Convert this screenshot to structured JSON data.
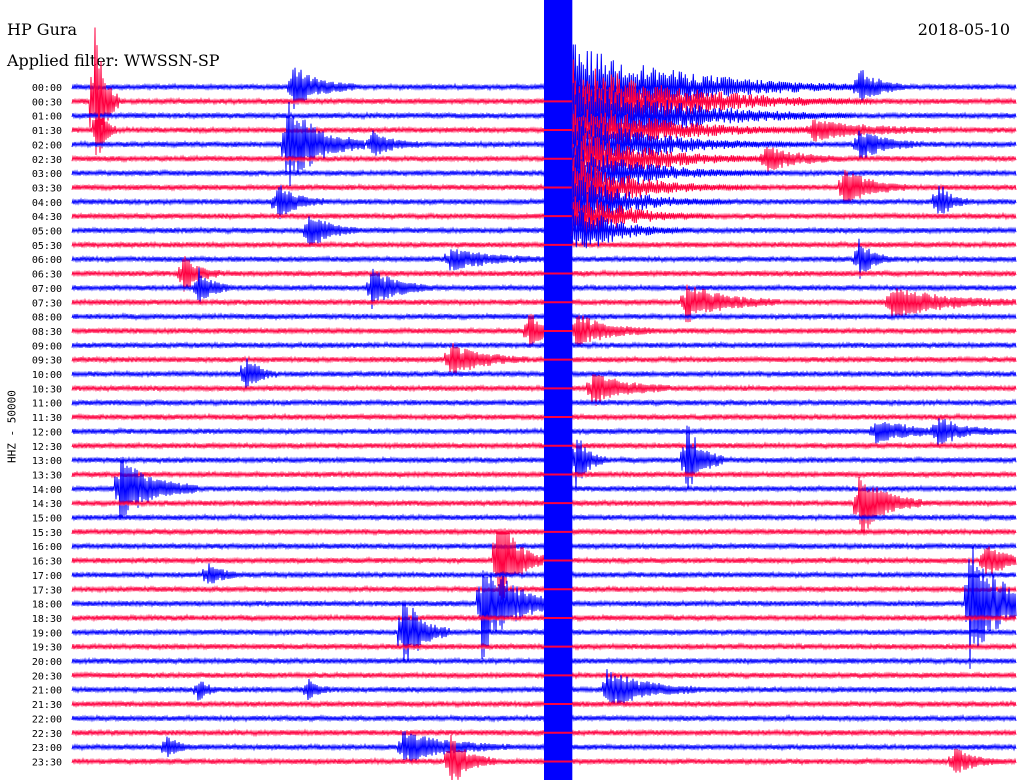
{
  "header": {
    "station": "HP Gura",
    "date": "2018-05-10",
    "filter": "Applied filter: WWSSN-SP"
  },
  "chart_data": {
    "type": "seismogram-helicorder",
    "ylabel": "HHZ - 50000",
    "colors": {
      "odd": "#0000ff",
      "even": "#ff0040"
    },
    "tick_labels": [
      "00:00",
      "00:30",
      "01:00",
      "01:30",
      "02:00",
      "02:30",
      "03:00",
      "03:30",
      "04:00",
      "04:30",
      "05:00",
      "05:30",
      "06:00",
      "06:30",
      "07:00",
      "07:30",
      "08:00",
      "08:30",
      "09:00",
      "09:30",
      "10:00",
      "10:30",
      "11:00",
      "11:30",
      "12:00",
      "12:30",
      "13:00",
      "13:30",
      "14:00",
      "14:30",
      "15:00",
      "15:30",
      "16:00",
      "16:30",
      "17:00",
      "17:30",
      "18:00",
      "18:30",
      "19:00",
      "19:30",
      "20:00",
      "20:30",
      "21:00",
      "21:30",
      "22:00",
      "22:30",
      "23:00",
      "23:30"
    ],
    "trace_minutes": 30,
    "events": [
      {
        "row": 0,
        "minute": 7.0,
        "amp": 1.6,
        "dur": 2.0
      },
      {
        "row": 0,
        "minute": 25.0,
        "amp": 1.4,
        "dur": 1.5
      },
      {
        "row": 1,
        "minute": 0.7,
        "amp": 6.0,
        "dur": 0.8
      },
      {
        "row": 3,
        "minute": 0.8,
        "amp": 2.5,
        "dur": 0.6
      },
      {
        "row": 3,
        "minute": 23.5,
        "amp": 0.8,
        "dur": 4.0
      },
      {
        "row": 4,
        "minute": 6.8,
        "amp": 3.5,
        "dur": 2.5
      },
      {
        "row": 4,
        "minute": 9.5,
        "amp": 1.0,
        "dur": 1.5
      },
      {
        "row": 4,
        "minute": 25.0,
        "amp": 1.2,
        "dur": 2.0
      },
      {
        "row": 5,
        "minute": 22.0,
        "amp": 1.0,
        "dur": 2.5
      },
      {
        "row": 7,
        "minute": 24.5,
        "amp": 1.5,
        "dur": 2.0
      },
      {
        "row": 8,
        "minute": 6.5,
        "amp": 1.4,
        "dur": 1.5
      },
      {
        "row": 8,
        "minute": 27.5,
        "amp": 1.5,
        "dur": 1.0
      },
      {
        "row": 10,
        "minute": 7.5,
        "amp": 1.5,
        "dur": 1.5
      },
      {
        "row": 12,
        "minute": 12.0,
        "amp": 0.8,
        "dur": 3.0
      },
      {
        "row": 12,
        "minute": 25.0,
        "amp": 1.6,
        "dur": 1.0
      },
      {
        "row": 13,
        "minute": 3.5,
        "amp": 1.5,
        "dur": 1.2
      },
      {
        "row": 14,
        "minute": 4.0,
        "amp": 1.5,
        "dur": 1.0
      },
      {
        "row": 14,
        "minute": 9.5,
        "amp": 1.5,
        "dur": 2.0
      },
      {
        "row": 15,
        "minute": 19.5,
        "amp": 1.4,
        "dur": 3.0
      },
      {
        "row": 15,
        "minute": 26.0,
        "amp": 1.2,
        "dur": 4.0
      },
      {
        "row": 17,
        "minute": 14.5,
        "amp": 1.5,
        "dur": 1.2
      },
      {
        "row": 17,
        "minute": 16.0,
        "amp": 1.2,
        "dur": 2.5
      },
      {
        "row": 19,
        "minute": 12.0,
        "amp": 1.2,
        "dur": 2.5
      },
      {
        "row": 20,
        "minute": 5.5,
        "amp": 1.5,
        "dur": 1.0
      },
      {
        "row": 21,
        "minute": 16.5,
        "amp": 1.3,
        "dur": 2.5
      },
      {
        "row": 24,
        "minute": 25.5,
        "amp": 1.0,
        "dur": 2.5
      },
      {
        "row": 24,
        "minute": 27.5,
        "amp": 1.0,
        "dur": 2.0
      },
      {
        "row": 26,
        "minute": 16.0,
        "amp": 2.2,
        "dur": 1.0
      },
      {
        "row": 26,
        "minute": 19.5,
        "amp": 3.0,
        "dur": 1.2
      },
      {
        "row": 28,
        "minute": 1.5,
        "amp": 2.5,
        "dur": 2.5
      },
      {
        "row": 29,
        "minute": 25.0,
        "amp": 2.5,
        "dur": 2.0
      },
      {
        "row": 33,
        "minute": 13.5,
        "amp": 4.0,
        "dur": 1.5
      },
      {
        "row": 33,
        "minute": 29.0,
        "amp": 1.5,
        "dur": 1.5
      },
      {
        "row": 34,
        "minute": 4.3,
        "amp": 1.0,
        "dur": 1.0
      },
      {
        "row": 36,
        "minute": 13.0,
        "amp": 4.0,
        "dur": 2.5
      },
      {
        "row": 36,
        "minute": 28.5,
        "amp": 5.0,
        "dur": 2.5
      },
      {
        "row": 38,
        "minute": 10.5,
        "amp": 3.0,
        "dur": 1.5
      },
      {
        "row": 42,
        "minute": 17.0,
        "amp": 1.5,
        "dur": 3.0
      },
      {
        "row": 42,
        "minute": 4.0,
        "amp": 0.8,
        "dur": 0.7
      },
      {
        "row": 42,
        "minute": 7.5,
        "amp": 0.8,
        "dur": 0.7
      },
      {
        "row": 46,
        "minute": 10.5,
        "amp": 1.2,
        "dur": 3.5
      },
      {
        "row": 46,
        "minute": 3.0,
        "amp": 1.0,
        "dur": 0.8
      },
      {
        "row": 47,
        "minute": 12.0,
        "amp": 2.0,
        "dur": 1.5
      },
      {
        "row": 47,
        "minute": 28.0,
        "amp": 1.0,
        "dur": 1.5
      }
    ],
    "mainshock": {
      "minute_start": 15.0,
      "minute_end": 15.9,
      "coda_rows": [
        0,
        1,
        2,
        3,
        4,
        5,
        6,
        7,
        8,
        9,
        10
      ]
    }
  }
}
